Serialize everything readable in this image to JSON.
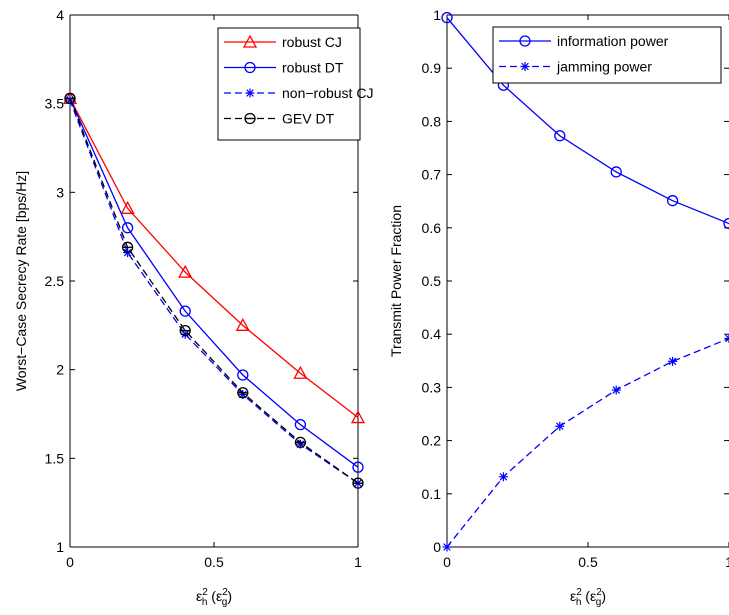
{
  "chart_data": [
    {
      "type": "line",
      "xlabel": "ε",
      "xlabel_sup": "2",
      "xlabel_sub": "h",
      "xlabel_paren": "(ε",
      "xlabel_paren_sup": "2",
      "xlabel_paren_sub": "g",
      "xlabel_close": ")",
      "ylabel": "Worst−Case Secrecy Rate [bps/Hz]",
      "xlim": [
        0,
        1
      ],
      "ylim": [
        1,
        4
      ],
      "xticks": [
        "0",
        "0.5",
        "1"
      ],
      "yticks": [
        "1",
        "1.5",
        "2",
        "2.5",
        "3",
        "3.5",
        "4"
      ],
      "legend": "top-right",
      "grid": false,
      "x": [
        0,
        0.2,
        0.4,
        0.6,
        0.8,
        1.0
      ],
      "series": [
        {
          "name": "robust CJ",
          "color": "#ff0000",
          "dash": "solid",
          "marker": "triangle",
          "values": [
            3.53,
            2.91,
            2.55,
            2.25,
            1.98,
            1.73
          ]
        },
        {
          "name": "robust DT",
          "color": "#0000ff",
          "dash": "solid",
          "marker": "circle",
          "values": [
            3.53,
            2.8,
            2.33,
            1.97,
            1.69,
            1.45
          ]
        },
        {
          "name": "non−robust CJ",
          "color": "#0000ff",
          "dash": "dashed",
          "marker": "star",
          "values": [
            3.52,
            2.66,
            2.2,
            1.86,
            1.58,
            1.36
          ]
        },
        {
          "name": "GEV DT",
          "color": "#000000",
          "dash": "dashed",
          "marker": "circle-bar",
          "values": [
            3.53,
            2.69,
            2.22,
            1.87,
            1.59,
            1.36
          ]
        }
      ]
    },
    {
      "type": "line",
      "xlabel": "ε",
      "xlabel_sup": "2",
      "xlabel_sub": "h",
      "xlabel_paren": "(ε",
      "xlabel_paren_sup": "2",
      "xlabel_paren_sub": "g",
      "xlabel_close": ")",
      "ylabel": "Transmit Power Fraction",
      "xlim": [
        0,
        1
      ],
      "ylim": [
        0,
        1
      ],
      "xticks": [
        "0",
        "0.5",
        "1"
      ],
      "yticks": [
        "0",
        "0.1",
        "0.2",
        "0.3",
        "0.4",
        "0.5",
        "0.6",
        "0.7",
        "0.8",
        "0.9",
        "1"
      ],
      "legend": "top-right",
      "grid": false,
      "x": [
        0,
        0.2,
        0.4,
        0.6,
        0.8,
        1.0
      ],
      "series": [
        {
          "name": "information power",
          "color": "#0000ff",
          "dash": "solid",
          "marker": "circle",
          "values": [
            0.995,
            0.868,
            0.773,
            0.705,
            0.651,
            0.608
          ]
        },
        {
          "name": "jamming power",
          "color": "#0000ff",
          "dash": "dashed",
          "marker": "star",
          "values": [
            0.0,
            0.132,
            0.227,
            0.295,
            0.349,
            0.392
          ]
        }
      ]
    }
  ]
}
